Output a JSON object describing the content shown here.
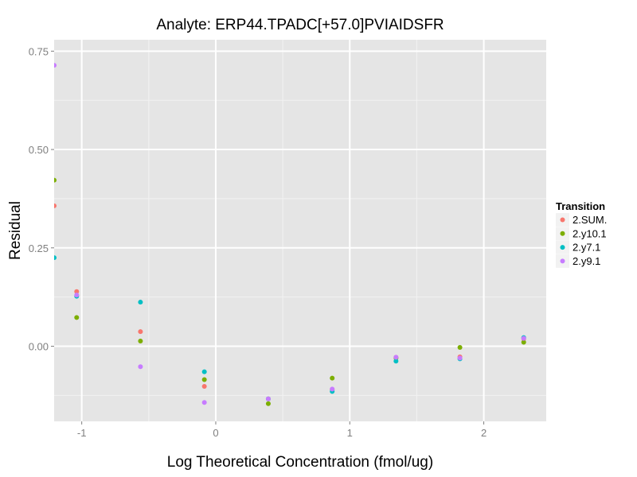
{
  "chart_data": {
    "type": "scatter",
    "title": "Analyte: ERP44.TPADC[+57.0]PVIAIDSFR",
    "xlabel": "Log Theoretical Concentration (fmol/ug)",
    "ylabel": "Residual",
    "xlim": [
      -1.206,
      2.466
    ],
    "ylim": [
      -0.191,
      0.779
    ],
    "grid": true,
    "x_ticks": [
      {
        "value": -1,
        "label": "-1"
      },
      {
        "value": 0,
        "label": "0"
      },
      {
        "value": 1,
        "label": "1"
      },
      {
        "value": 2,
        "label": "2"
      }
    ],
    "y_ticks": [
      {
        "value": 0,
        "label": "0.00"
      },
      {
        "value": 0.25,
        "label": "0.25"
      },
      {
        "value": 0.5,
        "label": "0.50"
      },
      {
        "value": 0.75,
        "label": "0.75"
      }
    ],
    "legend": {
      "title": "Transition",
      "placement": "right"
    },
    "x": [
      -1.206,
      -1.038,
      -0.562,
      -0.085,
      0.392,
      0.869,
      1.345,
      1.822,
      2.298
    ],
    "series": [
      {
        "name": "2.SUM.",
        "color": "#F8766D",
        "values": [
          0.357,
          0.139,
          0.037,
          -0.102,
          -0.134,
          -0.11,
          -0.028,
          -0.027,
          0.019
        ]
      },
      {
        "name": "2.y10.1",
        "color": "#7CAE00",
        "values": [
          0.422,
          0.073,
          0.013,
          -0.085,
          -0.146,
          -0.081,
          -0.03,
          -0.003,
          0.01
        ]
      },
      {
        "name": "2.y7.1",
        "color": "#00BFC4",
        "values": [
          0.225,
          0.127,
          0.112,
          -0.065,
          -0.134,
          -0.115,
          -0.038,
          -0.032,
          0.022
        ]
      },
      {
        "name": "2.y9.1",
        "color": "#C77CFF",
        "values": [
          0.714,
          0.13,
          -0.052,
          -0.143,
          -0.134,
          -0.109,
          -0.028,
          -0.03,
          0.02
        ]
      }
    ]
  }
}
